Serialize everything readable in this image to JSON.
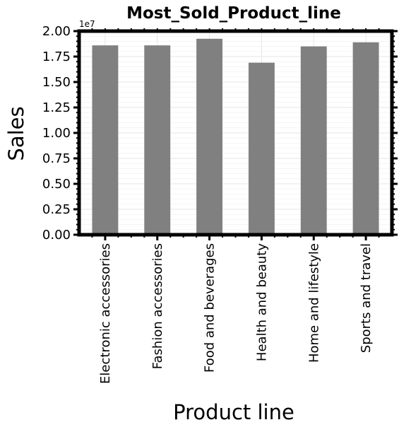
{
  "chart_data": {
    "type": "bar",
    "title": "Most_Sold_Product_line",
    "xlabel": "Product line",
    "ylabel": "Sales",
    "y_exponent_label": "1e7",
    "categories": [
      "Electronic accessories",
      "Fashion accessories",
      "Food and beverages",
      "Health and beauty",
      "Home and lifestyle",
      "Sports and travel"
    ],
    "values": [
      18600000,
      18600000,
      19250000,
      16900000,
      18500000,
      18900000
    ],
    "ylim": [
      0,
      20000000
    ],
    "yticks": [
      0,
      2500000,
      5000000,
      7500000,
      10000000,
      12500000,
      15000000,
      17500000,
      20000000
    ],
    "ytick_labels": [
      "0.00",
      "0.25",
      "0.50",
      "0.75",
      "1.00",
      "1.25",
      "1.50",
      "1.75",
      "2.00"
    ],
    "grid": true,
    "legend": "none",
    "colors": {
      "bar": "#808080",
      "grid": "#e6e6e6",
      "axes": "#000000"
    }
  }
}
